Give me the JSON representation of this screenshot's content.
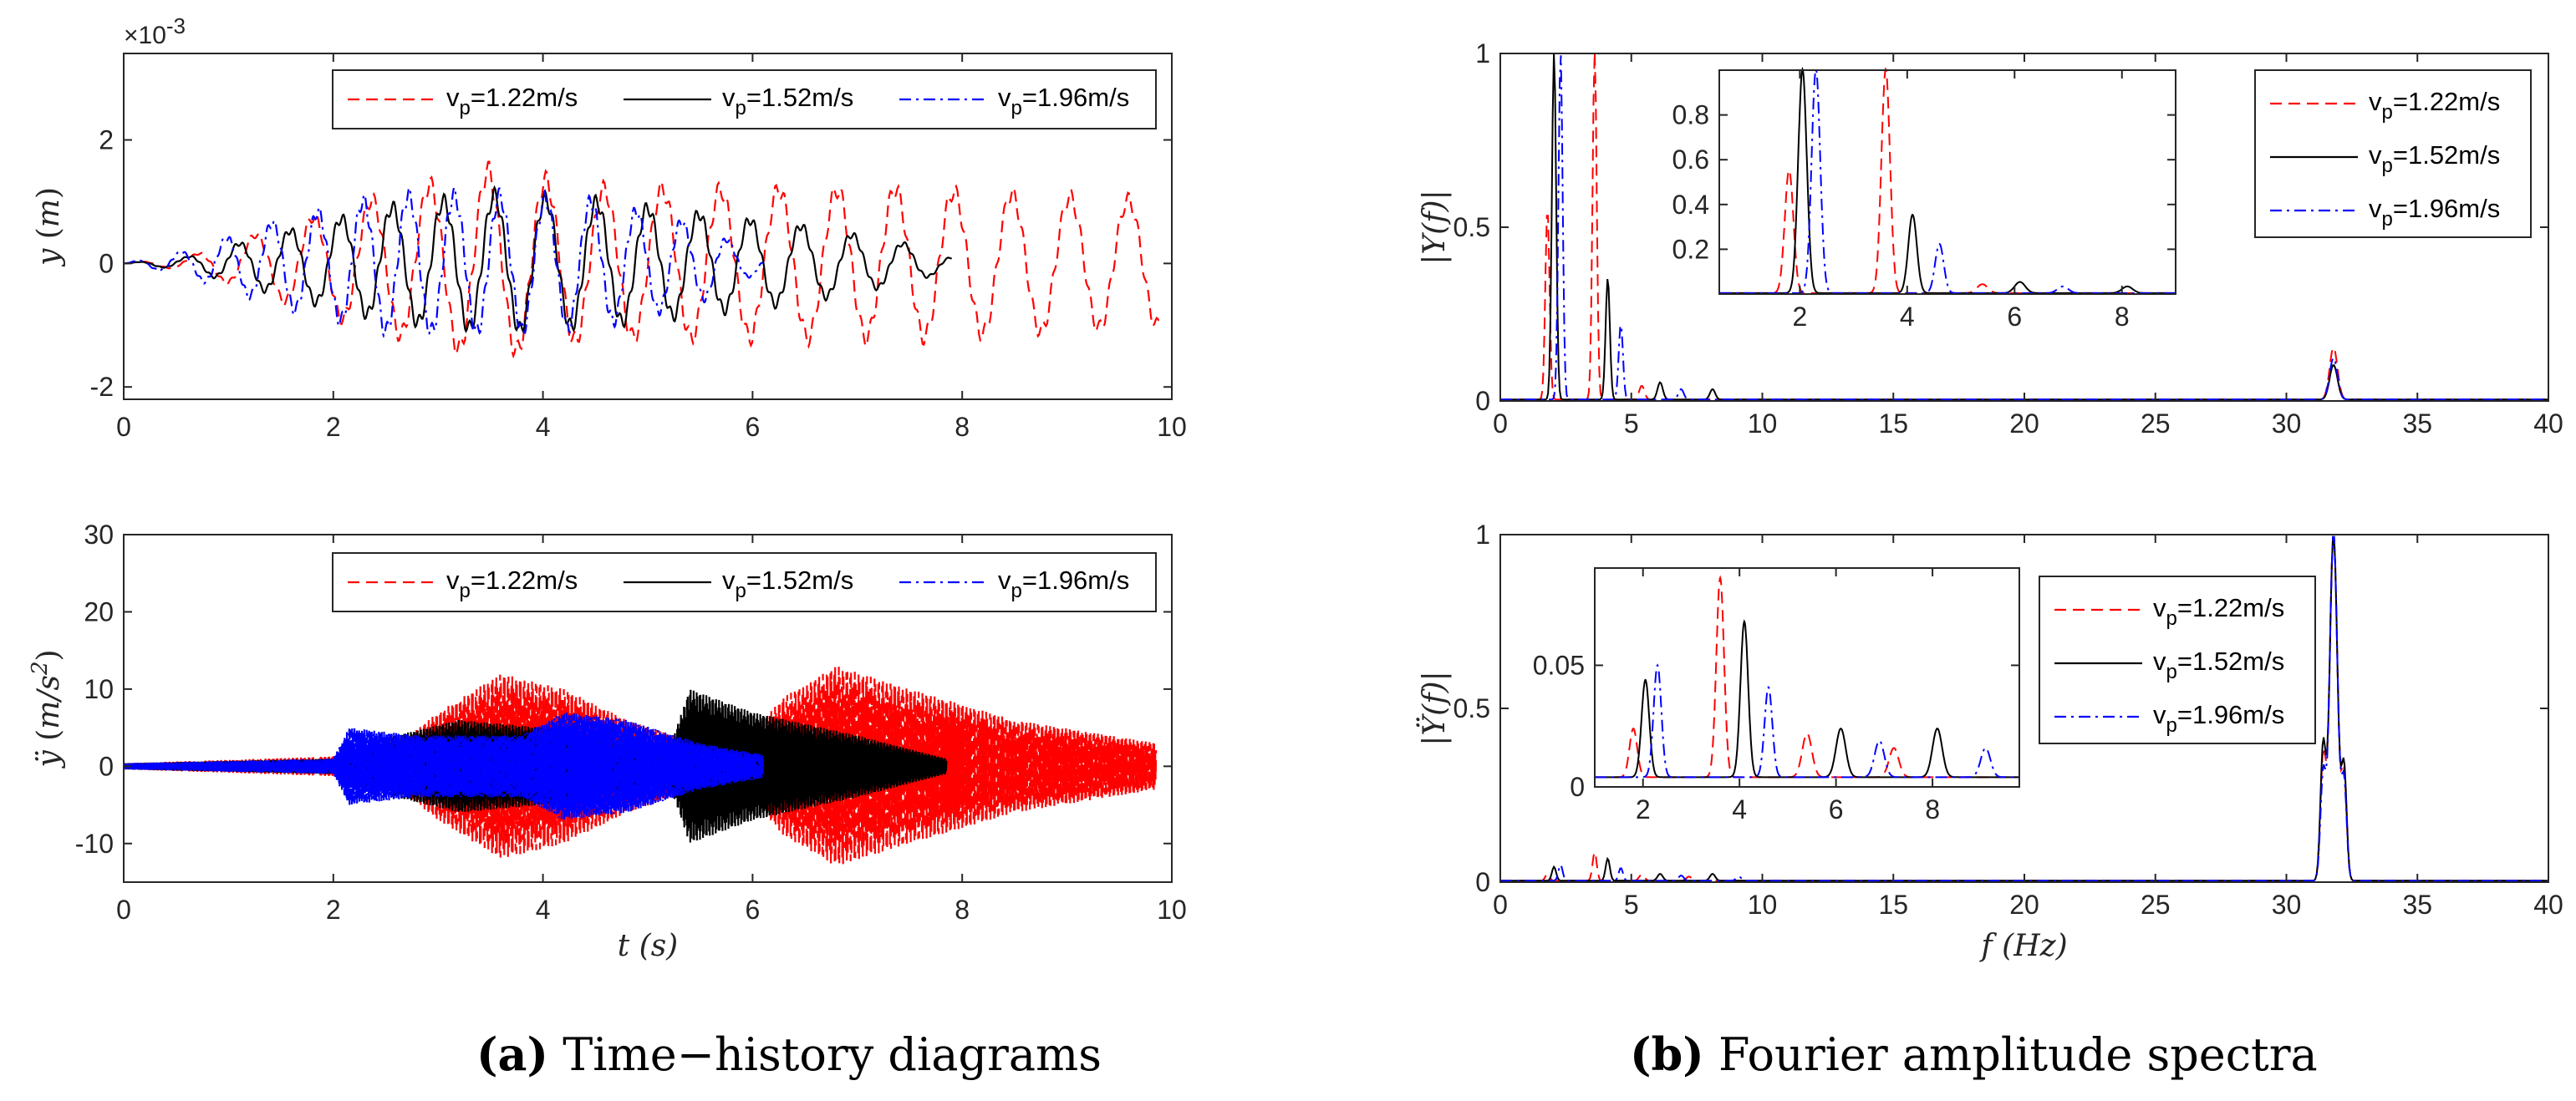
{
  "captions": {
    "a": {
      "label": "(a)",
      "text": "Time−history diagrams"
    },
    "b": {
      "label": "(b)",
      "text": "Fourier amplitude spectra"
    }
  },
  "chart_data": [
    {
      "id": "a-top",
      "type": "line",
      "ylabel": "y (m)",
      "xlabel": "",
      "exponent_label": "×10-3",
      "xlim": [
        0,
        10
      ],
      "ylim": [
        -2.2,
        3.4
      ],
      "xticks": [
        "0",
        "2",
        "4",
        "6",
        "8",
        "10"
      ],
      "yticks": [
        "-2",
        "0",
        "2"
      ],
      "legend": {
        "placement": "top-right",
        "orientation": "horizontal"
      },
      "series": [
        {
          "name": "vp=1.22m/s",
          "color": "#ff0000",
          "dash": "dashed",
          "model": {
            "kind": "osc",
            "t0": 0.0,
            "t1": 9.9,
            "freq": 1.8,
            "envelope": [
              [
                0,
                0
              ],
              [
                0.6,
                0.1
              ],
              [
                1.5,
                0.6
              ],
              [
                2.5,
                1.1
              ],
              [
                3.5,
                1.5
              ],
              [
                4.5,
                1.2
              ],
              [
                6.0,
                1.2
              ],
              [
                7.5,
                1.2
              ],
              [
                9.9,
                1.0
              ]
            ]
          }
        },
        {
          "name": "vp=1.52m/s",
          "color": "#000000",
          "dash": "solid",
          "model": {
            "kind": "osc",
            "t0": 0.0,
            "t1": 7.9,
            "freq": 2.05,
            "envelope": [
              [
                0,
                0
              ],
              [
                0.6,
                0.1
              ],
              [
                1.5,
                0.5
              ],
              [
                2.5,
                0.9
              ],
              [
                3.5,
                1.1
              ],
              [
                4.5,
                1.0
              ],
              [
                5.5,
                0.8
              ],
              [
                6.5,
                0.6
              ],
              [
                7.5,
                0.3
              ],
              [
                7.9,
                0.1
              ]
            ]
          }
        },
        {
          "name": "vp=1.96m/s",
          "color": "#0000ff",
          "dash": "dashdot",
          "model": {
            "kind": "osc",
            "t0": 0.0,
            "t1": 6.1,
            "freq": 2.3,
            "envelope": [
              [
                0,
                0
              ],
              [
                0.6,
                0.2
              ],
              [
                1.5,
                0.7
              ],
              [
                2.5,
                1.1
              ],
              [
                3.5,
                1.1
              ],
              [
                4.5,
                1.0
              ],
              [
                5.5,
                0.6
              ],
              [
                6.1,
                0.1
              ]
            ]
          }
        }
      ]
    },
    {
      "id": "a-bottom",
      "type": "line",
      "ylabel": "ÿ (m/s2)",
      "xlabel": "t (s)",
      "xlim": [
        0,
        10
      ],
      "ylim": [
        -15,
        30
      ],
      "xticks": [
        "0",
        "2",
        "4",
        "6",
        "8",
        "10"
      ],
      "yticks": [
        "-10",
        "0",
        "10",
        "20",
        "30"
      ],
      "legend": {
        "placement": "top-right",
        "orientation": "horizontal"
      },
      "series": [
        {
          "name": "vp=1.22m/s",
          "color": "#ff0000",
          "dash": "dashed",
          "model": {
            "kind": "band",
            "t0": 0.0,
            "t1": 9.85,
            "envelope": [
              [
                0,
                0.4
              ],
              [
                2.5,
                1.5
              ],
              [
                3.0,
                7
              ],
              [
                3.6,
                12
              ],
              [
                4.2,
                10
              ],
              [
                4.8,
                6
              ],
              [
                5.8,
                1.5
              ],
              [
                6.3,
                9
              ],
              [
                6.8,
                13
              ],
              [
                7.5,
                10
              ],
              [
                8.5,
                6
              ],
              [
                9.85,
                3
              ]
            ]
          }
        },
        {
          "name": "vp=1.52m/s",
          "color": "#000000",
          "dash": "solid",
          "model": {
            "kind": "band",
            "t0": 0.0,
            "t1": 7.85,
            "envelope": [
              [
                0,
                0.4
              ],
              [
                2.0,
                1.0
              ],
              [
                2.6,
                4
              ],
              [
                3.2,
                6
              ],
              [
                4.0,
                5
              ],
              [
                4.8,
                3
              ],
              [
                5.2,
                2
              ],
              [
                5.4,
                10
              ],
              [
                6.0,
                7
              ],
              [
                7.0,
                4
              ],
              [
                7.85,
                1
              ]
            ]
          }
        },
        {
          "name": "vp=1.96m/s",
          "color": "#0000ff",
          "dash": "dashdot",
          "model": {
            "kind": "band",
            "t0": 0.0,
            "t1": 6.1,
            "envelope": [
              [
                0,
                0.4
              ],
              [
                2.0,
                1.0
              ],
              [
                2.15,
                5
              ],
              [
                2.8,
                4
              ],
              [
                3.8,
                4
              ],
              [
                4.2,
                7
              ],
              [
                4.8,
                6
              ],
              [
                5.5,
                3
              ],
              [
                6.1,
                1.5
              ]
            ]
          }
        }
      ]
    },
    {
      "id": "b-top",
      "type": "line",
      "ylabel": "|Y(f)|",
      "xlabel": "",
      "xlim": [
        0,
        40
      ],
      "ylim": [
        0,
        1
      ],
      "xticks": [
        "0",
        "5",
        "10",
        "15",
        "20",
        "25",
        "30",
        "35",
        "40"
      ],
      "yticks": [
        "0",
        "0.5",
        "1"
      ],
      "legend": {
        "placement": "top-right",
        "orientation": "vertical"
      },
      "series": [
        {
          "name": "vp=1.22m/s",
          "color": "#ff0000",
          "dash": "dashed",
          "model": {
            "kind": "peaks",
            "peaks": [
              [
                1.8,
                0.55,
                0.08
              ],
              [
                3.6,
                1.0,
                0.08
              ],
              [
                5.4,
                0.04,
                0.1
              ],
              [
                31.8,
                0.15,
                0.15
              ]
            ]
          }
        },
        {
          "name": "vp=1.52m/s",
          "color": "#000000",
          "dash": "solid",
          "model": {
            "kind": "peaks",
            "peaks": [
              [
                2.05,
                1.0,
                0.08
              ],
              [
                4.1,
                0.35,
                0.08
              ],
              [
                6.1,
                0.05,
                0.1
              ],
              [
                8.1,
                0.03,
                0.1
              ],
              [
                31.8,
                0.1,
                0.15
              ]
            ]
          }
        },
        {
          "name": "vp=1.96m/s",
          "color": "#0000ff",
          "dash": "dashdot",
          "model": {
            "kind": "peaks",
            "peaks": [
              [
                2.3,
                1.0,
                0.08
              ],
              [
                4.6,
                0.22,
                0.08
              ],
              [
                6.9,
                0.03,
                0.1
              ],
              [
                31.8,
                0.12,
                0.15
              ]
            ]
          }
        }
      ],
      "inset": {
        "xlim": [
          0.5,
          9
        ],
        "ylim": [
          0,
          1
        ],
        "xticks": [
          "2",
          "4",
          "6",
          "8"
        ],
        "yticks": [
          "0.2",
          "0.4",
          "0.6",
          "0.8"
        ]
      }
    },
    {
      "id": "b-bottom",
      "type": "line",
      "ylabel": "|Ÿ(f)|",
      "xlabel": "f (Hz)",
      "xlim": [
        0,
        40
      ],
      "ylim": [
        0,
        1
      ],
      "xticks": [
        "0",
        "5",
        "10",
        "15",
        "20",
        "25",
        "30",
        "35",
        "40"
      ],
      "yticks": [
        "0",
        "0.5",
        "1"
      ],
      "legend": {
        "placement": "right",
        "orientation": "vertical"
      },
      "series": [
        {
          "name": "vp=1.22m/s",
          "color": "#ff0000",
          "dash": "dashed",
          "model": {
            "kind": "peaks",
            "peaks": [
              [
                1.8,
                0.02,
                0.08
              ],
              [
                3.6,
                0.082,
                0.08
              ],
              [
                5.4,
                0.018,
                0.1
              ],
              [
                7.2,
                0.012,
                0.1
              ],
              [
                31.8,
                1.0,
                0.15
              ],
              [
                31.4,
                0.35,
                0.1
              ],
              [
                32.2,
                0.3,
                0.1
              ]
            ]
          }
        },
        {
          "name": "vp=1.52m/s",
          "color": "#000000",
          "dash": "solid",
          "model": {
            "kind": "peaks",
            "peaks": [
              [
                2.05,
                0.04,
                0.08
              ],
              [
                4.1,
                0.064,
                0.08
              ],
              [
                6.1,
                0.02,
                0.1
              ],
              [
                8.1,
                0.02,
                0.1
              ],
              [
                31.8,
                1.0,
                0.15
              ],
              [
                31.4,
                0.38,
                0.1
              ],
              [
                32.2,
                0.32,
                0.1
              ]
            ]
          }
        },
        {
          "name": "vp=1.96m/s",
          "color": "#0000ff",
          "dash": "dashdot",
          "model": {
            "kind": "peaks",
            "peaks": [
              [
                2.3,
                0.046,
                0.08
              ],
              [
                4.6,
                0.037,
                0.08
              ],
              [
                6.9,
                0.015,
                0.1
              ],
              [
                9.1,
                0.012,
                0.1
              ],
              [
                31.8,
                1.0,
                0.15
              ],
              [
                31.4,
                0.3,
                0.1
              ],
              [
                32.2,
                0.28,
                0.1
              ]
            ]
          }
        }
      ],
      "inset": {
        "xlim": [
          1,
          9.8
        ],
        "ylim": [
          0,
          0.09
        ],
        "xticks": [
          "2",
          "4",
          "6",
          "8"
        ],
        "yticks": [
          "0",
          "0.05"
        ]
      }
    }
  ]
}
